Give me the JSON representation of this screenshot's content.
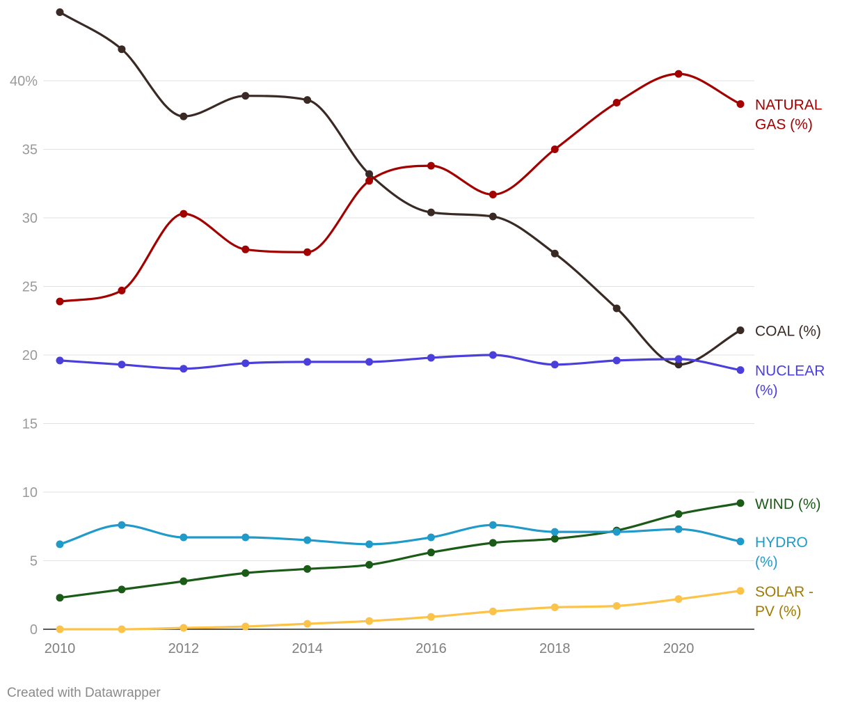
{
  "chart_data": {
    "type": "line",
    "x": [
      2010,
      2011,
      2012,
      2013,
      2014,
      2015,
      2016,
      2017,
      2018,
      2019,
      2020,
      2021
    ],
    "x_ticks": [
      "2010",
      "2012",
      "2014",
      "2016",
      "2018",
      "2020"
    ],
    "y_ticks": [
      "0",
      "5",
      "10",
      "15",
      "20",
      "25",
      "30",
      "35",
      "40%"
    ],
    "ylim": [
      0,
      45
    ],
    "grid": true,
    "series": [
      {
        "name": "Coal",
        "label_lines": [
          "COAL (%)"
        ],
        "color": "#3a2a25",
        "values": [
          45.0,
          42.3,
          37.4,
          38.9,
          38.6,
          33.2,
          30.4,
          30.1,
          27.4,
          23.4,
          19.3,
          21.8
        ]
      },
      {
        "name": "Natural gas",
        "label_lines": [
          "NATURAL",
          "GAS (%)"
        ],
        "color": "#a30000",
        "values": [
          23.9,
          24.7,
          30.3,
          27.7,
          27.5,
          32.7,
          33.8,
          31.7,
          35.0,
          38.4,
          40.5,
          38.3
        ]
      },
      {
        "name": "Nuclear",
        "label_lines": [
          "NUCLEAR",
          "(%)"
        ],
        "color": "#4b3fdc",
        "values": [
          19.6,
          19.3,
          19.0,
          19.4,
          19.5,
          19.5,
          19.8,
          20.0,
          19.3,
          19.6,
          19.7,
          18.9
        ]
      },
      {
        "name": "Wind",
        "label_lines": [
          "WIND (%)"
        ],
        "color": "#1a5c17",
        "values": [
          2.3,
          2.9,
          3.5,
          4.1,
          4.4,
          4.7,
          5.6,
          6.3,
          6.6,
          7.2,
          8.4,
          9.2
        ]
      },
      {
        "name": "Hydro",
        "label_lines": [
          "HYDRO",
          "(%)"
        ],
        "color": "#1f9ac9",
        "values": [
          6.2,
          7.6,
          6.7,
          6.7,
          6.5,
          6.2,
          6.7,
          7.6,
          7.1,
          7.1,
          7.3,
          6.4
        ]
      },
      {
        "name": "Solar - PV",
        "label_lines": [
          "SOLAR -",
          "PV (%)"
        ],
        "color": "#fcc34a",
        "label_color": "#a17a00",
        "values": [
          0.0,
          0.0,
          0.1,
          0.2,
          0.4,
          0.6,
          0.9,
          1.3,
          1.6,
          1.7,
          2.2,
          2.8
        ]
      }
    ]
  },
  "footer": {
    "credit": "Created with Datawrapper"
  }
}
